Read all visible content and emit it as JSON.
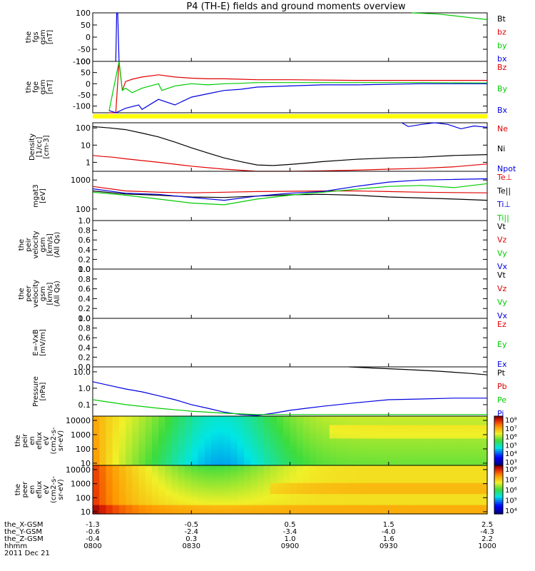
{
  "title": "P4 (TH-E) fields and ground moments overview",
  "colors": {
    "black": "#000000",
    "red": "#e00000",
    "green": "#00cc00",
    "blue": "#0000e0",
    "yellow": "#ffff00"
  },
  "chart_data": {
    "type": "line",
    "time_axis": {
      "x_range": [
        "0800",
        "1000"
      ],
      "ticks": [
        "0800",
        "0830",
        "0900",
        "0930",
        "1000"
      ],
      "rows": [
        {
          "label": "the_X-GSM",
          "values": [
            "-1.3",
            "-0.5",
            "0.5",
            "1.5",
            "2.5"
          ]
        },
        {
          "label": "the_Y-GSM",
          "values": [
            "-0.6",
            "-2.4",
            "-3.4",
            "-4.0",
            "-4.3"
          ]
        },
        {
          "label": "the_Z-GSM",
          "values": [
            "-0.4",
            "0.3",
            "1.0",
            "1.6",
            "2.2"
          ]
        },
        {
          "label": "hhmm",
          "values": [
            "0800",
            "0830",
            "0900",
            "0930",
            "1000"
          ]
        }
      ],
      "date": "2011 Dec 21"
    },
    "panels": [
      {
        "id": "fgs",
        "ylabel": [
          "the",
          "fgs",
          "gsm",
          "[nT]"
        ],
        "ylim": [
          -100,
          100
        ],
        "yticks": [
          "100",
          "50",
          "0",
          "-50",
          "-100"
        ],
        "legend": [
          {
            "name": "Bt",
            "color": "#000000"
          },
          {
            "name": "bz",
            "color": "#e00000"
          },
          {
            "name": "by",
            "color": "#00cc00"
          },
          {
            "name": "bx",
            "color": "#0000e0"
          }
        ],
        "series": [
          {
            "name": "by",
            "color": "#00cc00",
            "x": [
              97,
              105,
              110,
              115,
              120
            ],
            "y": [
              100,
              95,
              88,
              80,
              72
            ]
          },
          {
            "name": "bx",
            "color": "#0000e0",
            "x": [
              7,
              7.3,
              7.6,
              8
            ],
            "y": [
              -100,
              100,
              100,
              -100
            ]
          }
        ]
      },
      {
        "id": "fge",
        "ylabel": [
          "the",
          "fge",
          "gsm",
          "[nT]"
        ],
        "ylim": [
          -130,
          100
        ],
        "yticks": [
          "100",
          "50",
          "0",
          "-50",
          "-100"
        ],
        "legend": [
          {
            "name": "Bz",
            "color": "#e00000"
          },
          {
            "name": "By",
            "color": "#00cc00"
          },
          {
            "name": "Bx",
            "color": "#0000e0"
          }
        ],
        "series": [
          {
            "name": "Bz",
            "color": "#e00000",
            "x": [
              5,
              7,
              8,
              9,
              10,
              12,
              15,
              20,
              25,
              30,
              35,
              40,
              45,
              50,
              60,
              80,
              100,
              120
            ],
            "y": [
              -130,
              -130,
              100,
              -30,
              10,
              20,
              30,
              40,
              30,
              25,
              22,
              22,
              20,
              18,
              18,
              15,
              15,
              15
            ]
          },
          {
            "name": "By",
            "color": "#00cc00",
            "x": [
              5,
              8,
              9,
              10,
              12,
              15,
              20,
              21,
              25,
              30,
              35,
              40,
              45,
              50,
              60,
              80,
              100,
              120
            ],
            "y": [
              -120,
              100,
              -30,
              -20,
              -40,
              -20,
              0,
              -30,
              -10,
              0,
              -5,
              0,
              2,
              5,
              5,
              5,
              5,
              3
            ]
          },
          {
            "name": "Bx",
            "color": "#0000e0",
            "x": [
              5,
              7,
              10,
              14,
              15,
              20,
              25,
              30,
              35,
              40,
              45,
              50,
              60,
              70,
              80,
              100,
              120
            ],
            "y": [
              -120,
              -130,
              -110,
              -95,
              -115,
              -70,
              -95,
              -60,
              -45,
              -30,
              -25,
              -15,
              -10,
              -5,
              -5,
              0,
              0
            ]
          }
        ]
      },
      {
        "id": "density",
        "ylabel": [
          "Density",
          "[1/cc]",
          "[cm-3]"
        ],
        "log": true,
        "ylim": [
          0.3,
          200
        ],
        "yticks": [
          "100",
          "10",
          "1"
        ],
        "legend": [
          {
            "name": "Ne",
            "color": "#e00000"
          },
          {
            "name": "Ni",
            "color": "#000000"
          },
          {
            "name": "Npot",
            "color": "#0000e0"
          }
        ],
        "series": [
          {
            "name": "Ni",
            "color": "#000000",
            "x": [
              0,
              5,
              10,
              15,
              20,
              25,
              30,
              35,
              40,
              45,
              50,
              55,
              60,
              65,
              70,
              80,
              90,
              100,
              110,
              120
            ],
            "y": [
              120,
              100,
              80,
              50,
              30,
              15,
              7,
              3.5,
              1.8,
              1.1,
              0.7,
              0.65,
              0.75,
              0.9,
              1.1,
              1.5,
              1.8,
              2,
              2.5,
              2.8
            ]
          },
          {
            "name": "Ne",
            "color": "#e00000",
            "x": [
              0,
              3,
              6,
              10,
              20,
              30,
              40,
              50,
              60,
              70,
              80,
              90,
              100,
              110,
              120
            ],
            "y": [
              2.5,
              2.2,
              2,
              1.6,
              1.0,
              0.6,
              0.4,
              0.3,
              0.3,
              0.32,
              0.35,
              0.4,
              0.45,
              0.55,
              0.8
            ]
          },
          {
            "name": "Npot",
            "color": "#0000e0",
            "x": [
              94,
              96,
              100,
              104,
              108,
              112,
              116,
              120
            ],
            "y": [
              200,
              120,
              160,
              200,
              160,
              90,
              130,
              110
            ]
          }
        ]
      },
      {
        "id": "temp",
        "ylabel": [
          "mgat3",
          "[eV]"
        ],
        "log": true,
        "ylim": [
          40,
          2000
        ],
        "yticks": [
          "1000",
          "100"
        ],
        "legend": [
          {
            "name": "Te⊥",
            "color": "#e00000"
          },
          {
            "name": "Te||",
            "color": "#000000"
          },
          {
            "name": "Ti⊥",
            "color": "#0000e0"
          },
          {
            "name": "Ti||",
            "color": "#00cc00"
          }
        ],
        "series": [
          {
            "name": "Te⊥",
            "color": "#e00000",
            "x": [
              0,
              10,
              20,
              30,
              40,
              50,
              60,
              70,
              80,
              90,
              100,
              110,
              120
            ],
            "y": [
              600,
              420,
              380,
              360,
              380,
              400,
              410,
              420,
              420,
              400,
              380,
              370,
              360
            ]
          },
          {
            "name": "Te||",
            "color": "#000000",
            "x": [
              0,
              10,
              20,
              30,
              40,
              50,
              60,
              70,
              80,
              90,
              100,
              110,
              120
            ],
            "y": [
              420,
              330,
              300,
              260,
              250,
              280,
              310,
              320,
              300,
              260,
              240,
              220,
              200
            ]
          },
          {
            "name": "Ti⊥",
            "color": "#0000e0",
            "x": [
              0,
              10,
              20,
              30,
              40,
              50,
              60,
              70,
              80,
              90,
              100,
              110,
              120
            ],
            "y": [
              500,
              350,
              320,
              250,
              200,
              280,
              350,
              400,
              600,
              850,
              1000,
              1050,
              1100
            ]
          },
          {
            "name": "Ti||",
            "color": "#00cc00",
            "x": [
              0,
              10,
              20,
              30,
              40,
              50,
              60,
              70,
              80,
              90,
              100,
              110,
              120
            ],
            "y": [
              380,
              300,
              220,
              160,
              140,
              220,
              300,
              380,
              480,
              600,
              650,
              550,
              750
            ]
          }
        ]
      },
      {
        "id": "peir-velocity",
        "ylabel": [
          "the",
          "peir",
          "velocity",
          "gsm",
          "[km/s]",
          "(All Qs)"
        ],
        "ylim": [
          0,
          1
        ],
        "yticks": [
          "1.0",
          "0.8",
          "0.6",
          "0.4",
          "0.2",
          "0.0"
        ],
        "legend": [
          {
            "name": "Vt",
            "color": "#000000"
          },
          {
            "name": "Vz",
            "color": "#e00000"
          },
          {
            "name": "Vy",
            "color": "#00cc00"
          },
          {
            "name": "Vx",
            "color": "#0000e0"
          }
        ],
        "series": []
      },
      {
        "id": "peer-velocity",
        "ylabel": [
          "the",
          "peer",
          "velocity",
          "gsm",
          "[km/s]",
          "(All Qs)"
        ],
        "ylim": [
          0,
          1
        ],
        "yticks": [
          "1.0",
          "0.8",
          "0.6",
          "0.4",
          "0.2",
          "0.0"
        ],
        "legend": [
          {
            "name": "Vt",
            "color": "#000000"
          },
          {
            "name": "Vz",
            "color": "#e00000"
          },
          {
            "name": "Vy",
            "color": "#00cc00"
          },
          {
            "name": "Vx",
            "color": "#0000e0"
          }
        ],
        "series": []
      },
      {
        "id": "efield",
        "ylabel": [
          "E=-VxB",
          "[mV/m]"
        ],
        "ylim": [
          0,
          1
        ],
        "yticks": [
          "1.0",
          "0.8",
          "0.6",
          "0.4",
          "0.2",
          "0.0"
        ],
        "legend": [
          {
            "name": "Ez",
            "color": "#e00000"
          },
          {
            "name": "Ey",
            "color": "#00cc00"
          },
          {
            "name": "Ex",
            "color": "#0000e0"
          }
        ],
        "series": []
      },
      {
        "id": "pressure",
        "ylabel": [
          "Pressure",
          "[nPa]"
        ],
        "log": true,
        "ylim": [
          0.02,
          20
        ],
        "yticks": [
          "10.0",
          "1.0",
          "0.1"
        ],
        "legend": [
          {
            "name": "Pt",
            "color": "#000000"
          },
          {
            "name": "Pb",
            "color": "#e00000"
          },
          {
            "name": "Pe",
            "color": "#00cc00"
          },
          {
            "name": "Pi",
            "color": "#0000e0"
          }
        ],
        "series": [
          {
            "name": "Pt",
            "color": "#000000",
            "x": [
              78,
              85,
              95,
              105,
              115,
              120
            ],
            "y": [
              20,
              17,
              14,
              11,
              8,
              6.5
            ]
          },
          {
            "name": "Pi",
            "color": "#0000e0",
            "x": [
              0,
              5,
              10,
              15,
              20,
              25,
              30,
              35,
              40,
              45,
              50,
              55,
              60,
              65,
              70,
              80,
              90,
              100,
              110,
              120
            ],
            "y": [
              2.5,
              1.5,
              0.9,
              0.6,
              0.35,
              0.2,
              0.1,
              0.06,
              0.035,
              0.025,
              0.022,
              0.03,
              0.045,
              0.06,
              0.08,
              0.13,
              0.2,
              0.22,
              0.25,
              0.25
            ]
          },
          {
            "name": "Pe",
            "color": "#00cc00",
            "x": [
              0,
              10,
              20,
              30,
              40,
              50,
              60,
              70,
              80,
              90,
              100,
              110,
              120
            ],
            "y": [
              0.2,
              0.1,
              0.06,
              0.04,
              0.03,
              0.025,
              0.025,
              0.025,
              0.025,
              0.025,
              0.025,
              0.025,
              0.025
            ]
          }
        ]
      },
      {
        "id": "peir-spec",
        "type": "heatmap",
        "ylabel": [
          "the",
          "peir",
          "en",
          "eflux",
          "eV",
          "(cm2-s-",
          "sr-eV)"
        ],
        "log": true,
        "ylim": [
          7,
          20000
        ],
        "yticks": [
          "10000",
          "1000",
          "100",
          "10"
        ],
        "colorbar": {
          "ticks": [
            "10⁸",
            "10⁷",
            "10⁶",
            "10⁵",
            "10⁴",
            "10³"
          ]
        }
      },
      {
        "id": "peer-spec",
        "type": "heatmap",
        "ylabel": [
          "the",
          "peer",
          "en",
          "eflux",
          "eV",
          "(cm2-s-",
          "sr-eV)"
        ],
        "log": true,
        "ylim": [
          7,
          20000
        ],
        "yticks": [
          "10000",
          "1000",
          "100",
          "10"
        ],
        "colorbar": {
          "ticks": [
            "10⁸",
            "10⁷",
            "10⁶",
            "10⁵",
            "10⁴"
          ]
        }
      }
    ]
  }
}
